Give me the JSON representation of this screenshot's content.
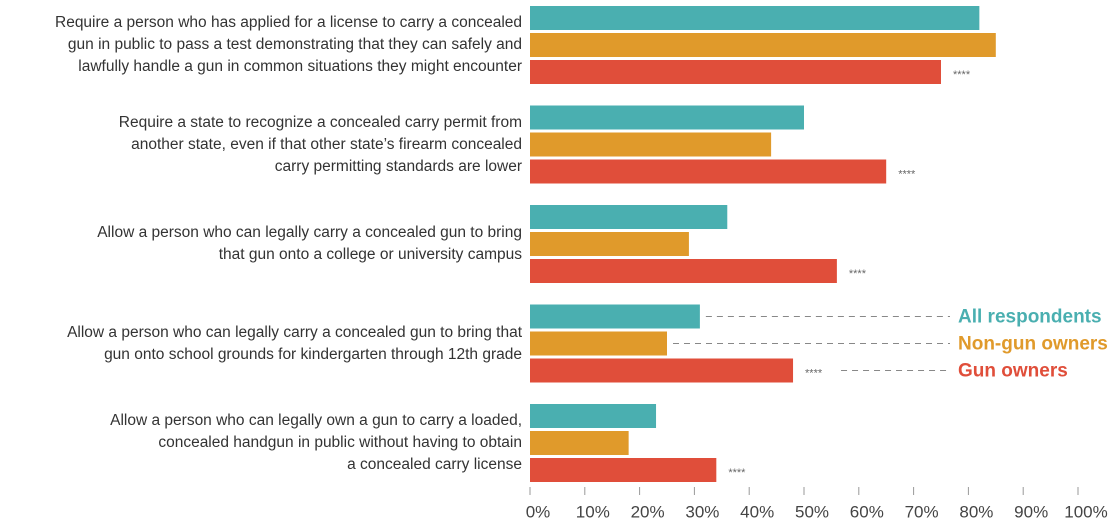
{
  "chart_data": {
    "type": "hbar",
    "categories": [
      "Require a person who has applied for a license to carry a concealed\ngun in public to pass a test demonstrating that they can safely and\nlawfully handle a gun in common situations they might encounter",
      "Require a state to recognize a concealed carry permit from\nanother state, even if that other state’s firearm concealed\ncarry permitting standards are lower",
      "Allow a person who can legally carry a concealed gun to bring\nthat gun onto a college or university campus",
      "Allow a person who can legally carry a concealed gun to bring that\ngun onto school grounds for kindergarten through 12th grade",
      "Allow a person who can legally own a gun to carry a loaded,\nconcealed handgun in public without having to obtain\na concealed carry license"
    ],
    "series": [
      {
        "name": "All respondents",
        "color": "#4aafb0",
        "values": [
          82,
          50,
          36,
          31,
          23
        ]
      },
      {
        "name": "Non-gun owners",
        "color": "#e09a2b",
        "values": [
          85,
          44,
          29,
          25,
          18
        ]
      },
      {
        "name": "Gun owners",
        "color": "#e04e3a",
        "values": [
          75,
          65,
          56,
          48,
          34
        ],
        "annotations": [
          "****",
          "****",
          "****",
          "****",
          "****"
        ]
      }
    ],
    "xlim": [
      0,
      100
    ],
    "xticks": [
      {
        "value": 0,
        "label": "0%"
      },
      {
        "value": 10,
        "label": "10%"
      },
      {
        "value": 20,
        "label": "20%"
      },
      {
        "value": 30,
        "label": "30%"
      },
      {
        "value": 40,
        "label": "40%"
      },
      {
        "value": 50,
        "label": "50%"
      },
      {
        "value": 60,
        "label": "60%"
      },
      {
        "value": 70,
        "label": "70%"
      },
      {
        "value": 80,
        "label": "80%"
      },
      {
        "value": 90,
        "label": "90%"
      },
      {
        "value": 100,
        "label": "100%"
      }
    ],
    "legend_category": 3
  }
}
